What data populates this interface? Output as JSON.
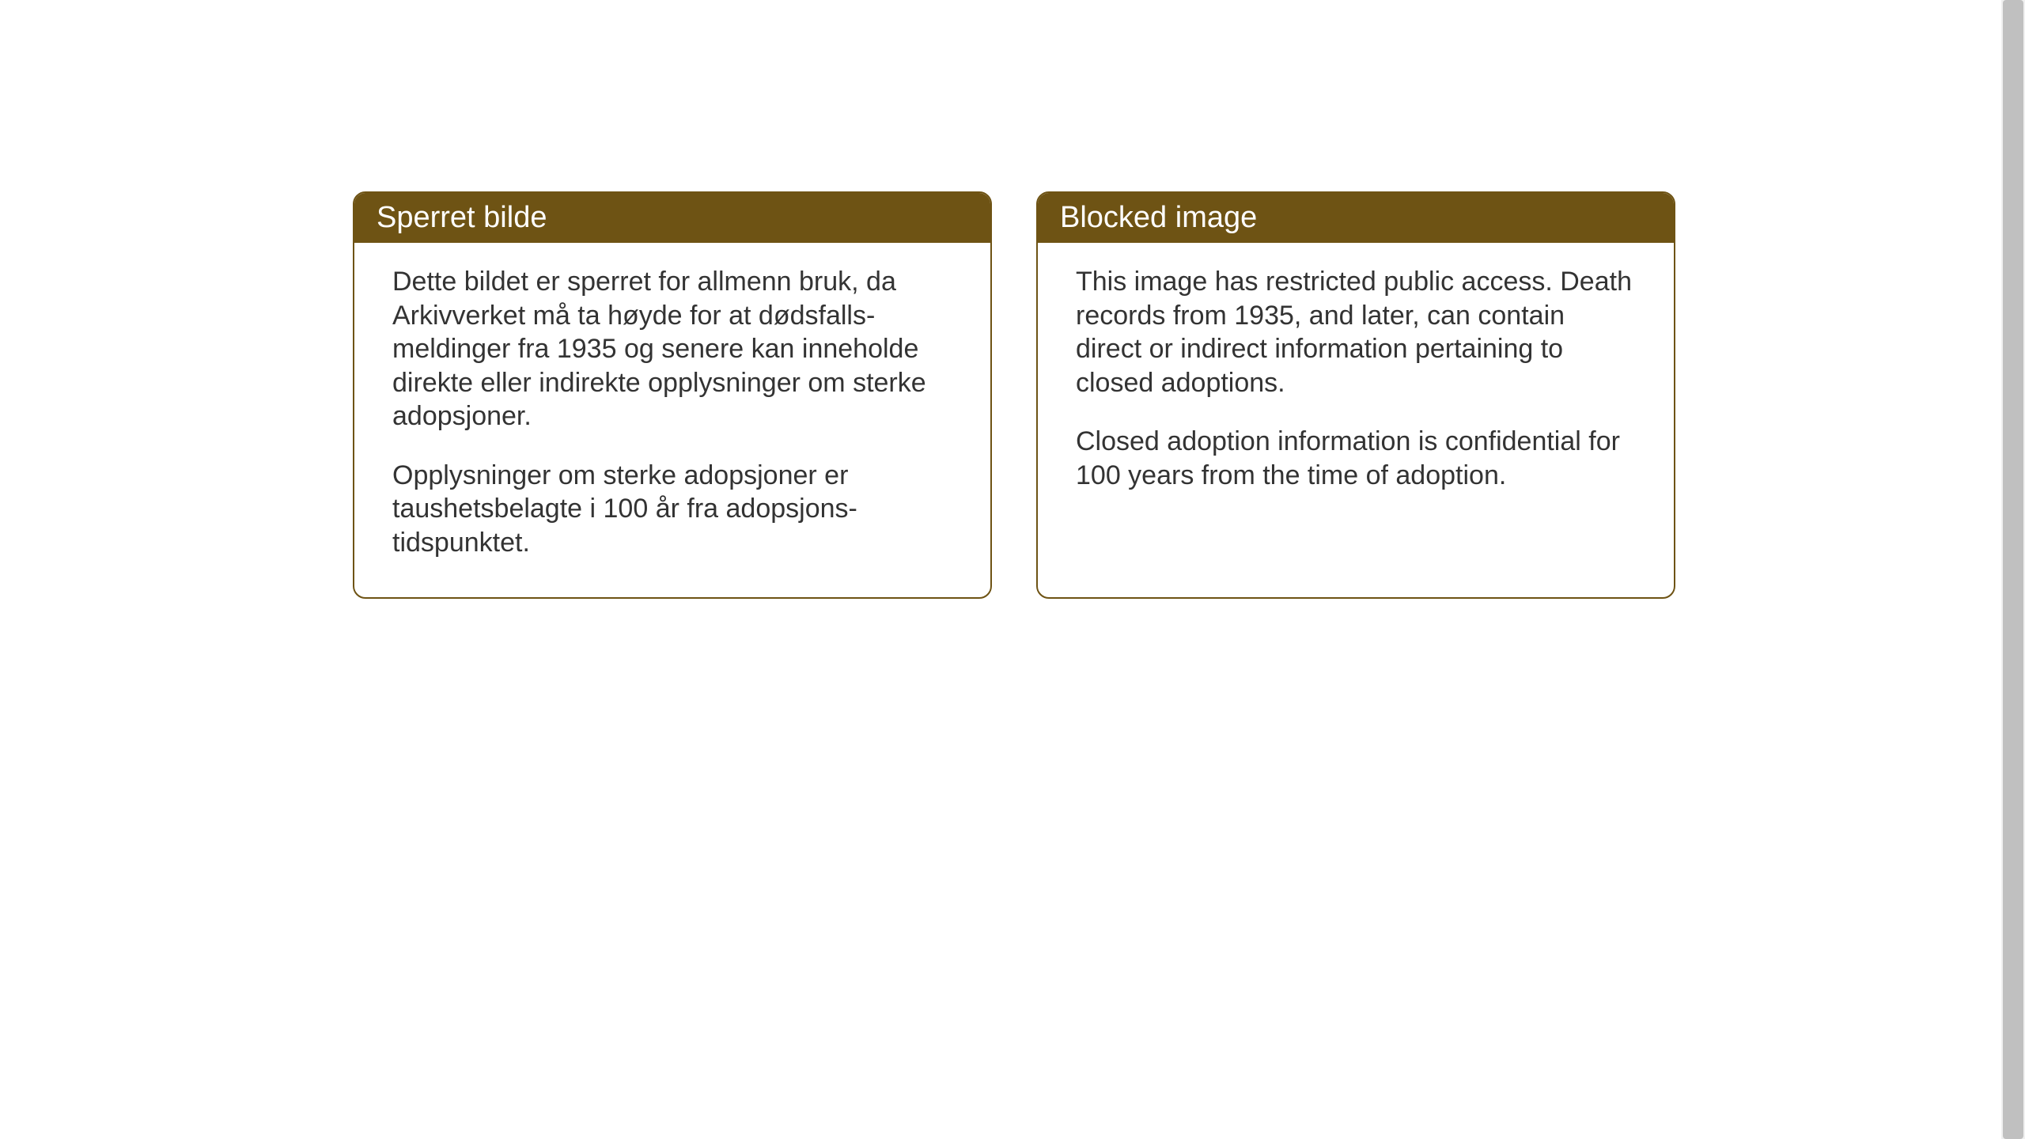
{
  "layout": {
    "background_color": "#ffffff",
    "box_border_color": "#6e5314",
    "header_bg_color": "#6e5314",
    "header_text_color": "#ffffff",
    "body_text_color": "#333333",
    "border_radius": 16,
    "header_fontsize": 38,
    "body_fontsize": 34
  },
  "notices": {
    "norwegian": {
      "title": "Sperret bilde",
      "paragraph1": "Dette bildet er sperret for allmenn bruk, da Arkivverket må ta høyde for at dødsfalls-meldinger fra 1935 og senere kan inneholde direkte eller indirekte opplysninger om sterke adopsjoner.",
      "paragraph2": "Opplysninger om sterke adopsjoner er taushetsbelagte i 100 år fra adopsjons-tidspunktet."
    },
    "english": {
      "title": "Blocked image",
      "paragraph1": "This image has restricted public access. Death records from 1935, and later, can contain direct or indirect information pertaining to closed adoptions.",
      "paragraph2": "Closed adoption information is confidential for 100 years from the time of adoption."
    }
  }
}
